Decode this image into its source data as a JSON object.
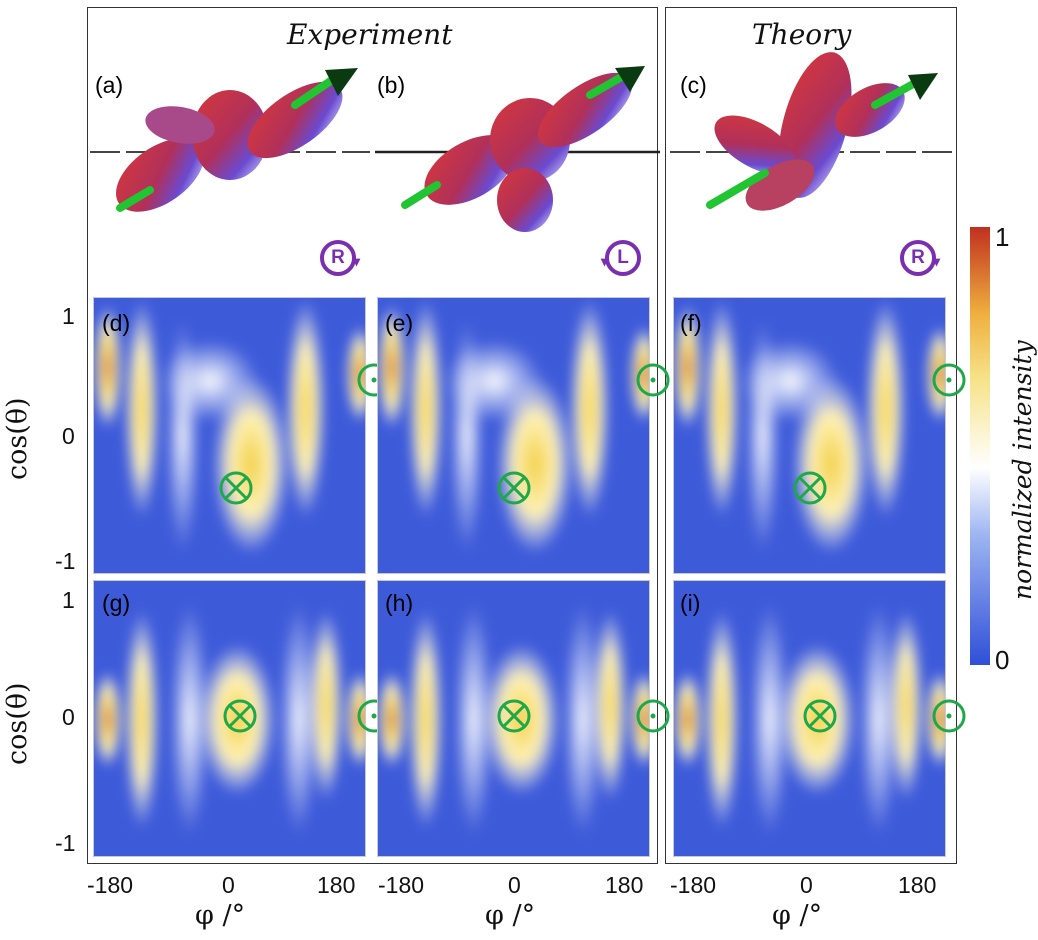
{
  "section_titles": {
    "experiment": "Experiment",
    "theory": "Theory"
  },
  "panel_labels": [
    "(a)",
    "(b)",
    "(c)",
    "(d)",
    "(e)",
    "(f)",
    "(g)",
    "(h)",
    "(i)"
  ],
  "helicity_badges": [
    {
      "panel": "(a)",
      "text": "R"
    },
    {
      "panel": "(b)",
      "text": "L"
    },
    {
      "panel": "(c)",
      "text": "R"
    }
  ],
  "colors": {
    "low": "#3b55d9",
    "mid": "#ffffff",
    "high1": "#f2d64b",
    "high2": "#b8211b",
    "marker": "#1fa84a",
    "badge": "#7a2fb1"
  },
  "colorbar": {
    "max_label": "1",
    "min_label": "0",
    "label": "normalized intensity"
  },
  "y_axis": {
    "label": "cos(θ)",
    "ticks": [
      "1",
      "0",
      "-1"
    ]
  },
  "x_axis": {
    "label": "φ /°",
    "ticks": [
      "-180",
      "0",
      "180"
    ]
  },
  "chart_data": {
    "type": "heatmap",
    "x_range": [
      -200,
      200
    ],
    "y_range": [
      -1,
      1
    ],
    "panels": [
      {
        "id": "(d)",
        "markers": [
          {
            "kind": "into",
            "phi": 10,
            "cos": -0.38
          },
          {
            "kind": "out",
            "phi": 212,
            "cos": 0.4
          }
        ]
      },
      {
        "id": "(e)",
        "markers": [
          {
            "kind": "into",
            "phi": 0,
            "cos": -0.38
          },
          {
            "kind": "out",
            "phi": 205,
            "cos": 0.4
          }
        ]
      },
      {
        "id": "(f)",
        "markers": [
          {
            "kind": "into",
            "phi": 0,
            "cos": -0.38
          },
          {
            "kind": "out",
            "phi": 205,
            "cos": 0.4
          }
        ]
      },
      {
        "id": "(g)",
        "markers": [
          {
            "kind": "into",
            "phi": 15,
            "cos": 0.02
          },
          {
            "kind": "out",
            "phi": 212,
            "cos": 0.02
          }
        ]
      },
      {
        "id": "(h)",
        "markers": [
          {
            "kind": "into",
            "phi": 0,
            "cos": 0.02
          },
          {
            "kind": "out",
            "phi": 205,
            "cos": 0.02
          }
        ]
      },
      {
        "id": "(i)",
        "markers": [
          {
            "kind": "into",
            "phi": 15,
            "cos": 0.02
          },
          {
            "kind": "out",
            "phi": 205,
            "cos": 0.02
          }
        ]
      }
    ]
  }
}
